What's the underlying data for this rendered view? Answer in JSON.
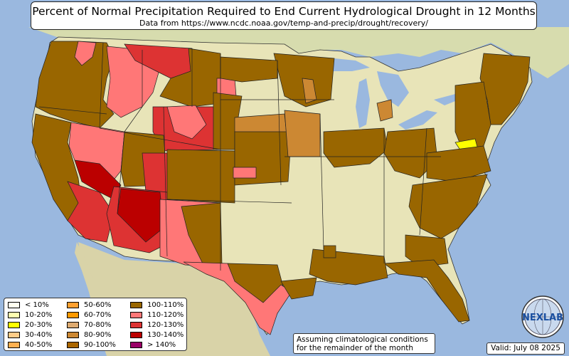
{
  "title": "Percent of Normal Precipitation Required to End Current Hydrological Drought in 12 Months",
  "subtitle": "Data from https://www.ncdc.noaa.gov/temp-and-precip/drought/recovery/",
  "note": {
    "line1": "Assuming climatological conditions",
    "line2": "for the remainder of the month"
  },
  "valid": "Valid: July 08 2025",
  "logo": {
    "text": "NEXLAB",
    "icon": "nexlab-globe-logo"
  },
  "colors": {
    "ocean": "#9ab8df",
    "land": "#e8e4b8",
    "border": "#000000"
  },
  "legend": [
    {
      "label": "< 10%",
      "color": "#fffff0"
    },
    {
      "label": "10-20%",
      "color": "#ffffb0"
    },
    {
      "label": "20-30%",
      "color": "#ffff00"
    },
    {
      "label": "30-40%",
      "color": "#ffcc88"
    },
    {
      "label": "40-50%",
      "color": "#ffb050"
    },
    {
      "label": "50-60%",
      "color": "#ffa030"
    },
    {
      "label": "60-70%",
      "color": "#ff9900"
    },
    {
      "label": "70-80%",
      "color": "#ddaa70"
    },
    {
      "label": "80-90%",
      "color": "#cc8833"
    },
    {
      "label": "90-100%",
      "color": "#aa6600"
    },
    {
      "label": "100-110%",
      "color": "#996600"
    },
    {
      "label": "110-120%",
      "color": "#ff7777"
    },
    {
      "label": "120-130%",
      "color": "#dd3333"
    },
    {
      "label": "130-140%",
      "color": "#bb0000"
    },
    {
      "label": "> 140%",
      "color": "#990066"
    }
  ]
}
